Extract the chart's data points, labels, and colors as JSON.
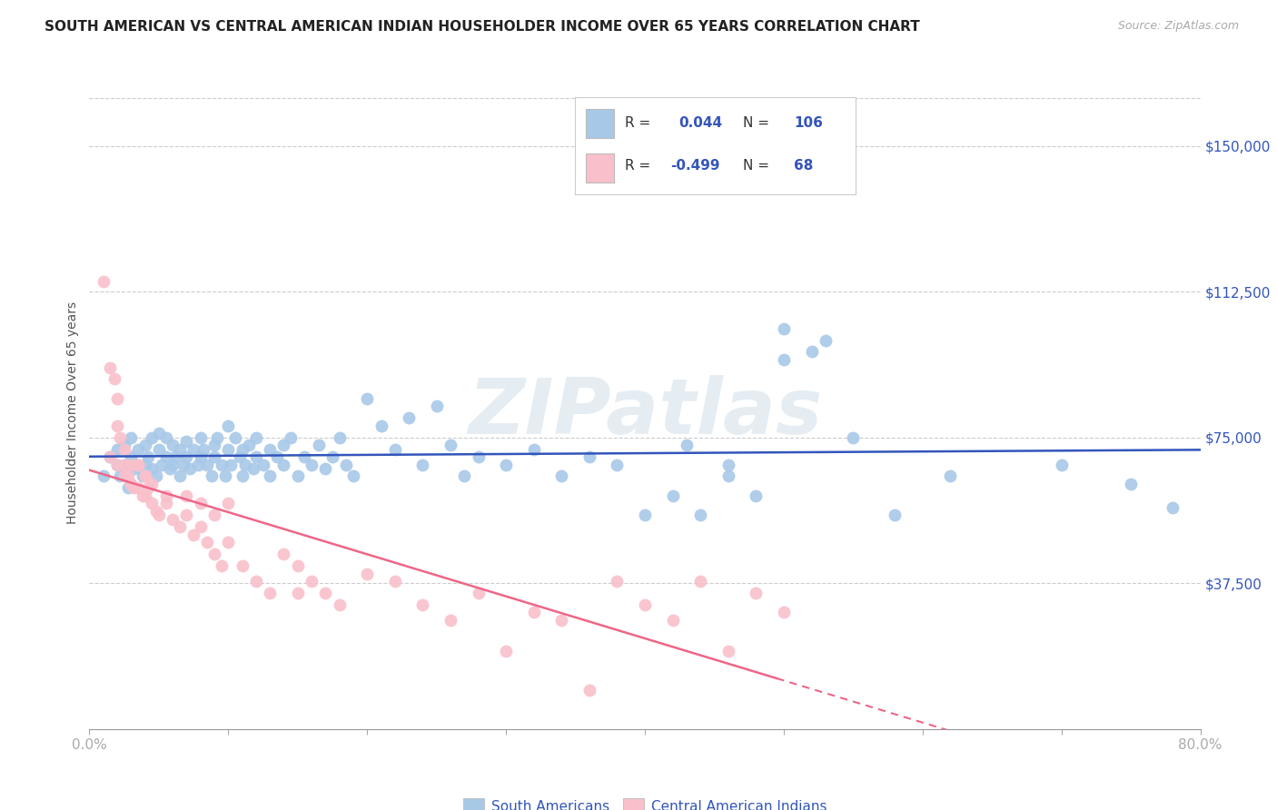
{
  "title": "SOUTH AMERICAN VS CENTRAL AMERICAN INDIAN HOUSEHOLDER INCOME OVER 65 YEARS CORRELATION CHART",
  "source": "Source: ZipAtlas.com",
  "ylabel": "Householder Income Over 65 years",
  "ytick_labels": [
    "$37,500",
    "$75,000",
    "$112,500",
    "$150,000"
  ],
  "ytick_values": [
    37500,
    75000,
    112500,
    150000
  ],
  "ymin": 0,
  "ymax": 162500,
  "xmin": 0.0,
  "xmax": 0.8,
  "r_blue": 0.044,
  "n_blue": 106,
  "r_pink": -0.499,
  "n_pink": 68,
  "watermark": "ZIPatlas",
  "blue_color": "#a8c8e8",
  "pink_color": "#f9c0cb",
  "line_blue": "#3355bb",
  "line_pink": "#ee6688",
  "legend_blue_label": "South Americans",
  "legend_pink_label": "Central American Indians",
  "title_color": "#222222",
  "axis_label_color": "#3355bb",
  "grid_color": "#cccccc",
  "background_color": "#ffffff",
  "blue_scatter_x": [
    0.01,
    0.015,
    0.02,
    0.02,
    0.022,
    0.025,
    0.025,
    0.028,
    0.03,
    0.03,
    0.032,
    0.035,
    0.035,
    0.038,
    0.04,
    0.04,
    0.042,
    0.045,
    0.045,
    0.048,
    0.05,
    0.05,
    0.052,
    0.055,
    0.055,
    0.058,
    0.06,
    0.06,
    0.062,
    0.065,
    0.065,
    0.068,
    0.07,
    0.07,
    0.072,
    0.075,
    0.078,
    0.08,
    0.08,
    0.082,
    0.085,
    0.088,
    0.09,
    0.09,
    0.092,
    0.095,
    0.098,
    0.1,
    0.1,
    0.102,
    0.105,
    0.108,
    0.11,
    0.11,
    0.112,
    0.115,
    0.118,
    0.12,
    0.12,
    0.125,
    0.13,
    0.13,
    0.135,
    0.14,
    0.14,
    0.145,
    0.15,
    0.155,
    0.16,
    0.165,
    0.17,
    0.175,
    0.18,
    0.185,
    0.19,
    0.2,
    0.21,
    0.22,
    0.23,
    0.24,
    0.25,
    0.26,
    0.27,
    0.28,
    0.3,
    0.32,
    0.34,
    0.36,
    0.38,
    0.4,
    0.42,
    0.44,
    0.46,
    0.48,
    0.5,
    0.52,
    0.55,
    0.58,
    0.62,
    0.7,
    0.75,
    0.78,
    0.43,
    0.46,
    0.5,
    0.53
  ],
  "blue_scatter_y": [
    65000,
    70000,
    68000,
    72000,
    65000,
    68000,
    73000,
    62000,
    70000,
    75000,
    67000,
    68000,
    72000,
    65000,
    73000,
    68000,
    70000,
    75000,
    67000,
    65000,
    72000,
    76000,
    68000,
    75000,
    70000,
    67000,
    73000,
    68000,
    70000,
    65000,
    72000,
    68000,
    70000,
    74000,
    67000,
    72000,
    68000,
    75000,
    70000,
    72000,
    68000,
    65000,
    73000,
    70000,
    75000,
    68000,
    65000,
    78000,
    72000,
    68000,
    75000,
    70000,
    65000,
    72000,
    68000,
    73000,
    67000,
    75000,
    70000,
    68000,
    65000,
    72000,
    70000,
    73000,
    68000,
    75000,
    65000,
    70000,
    68000,
    73000,
    67000,
    70000,
    75000,
    68000,
    65000,
    85000,
    78000,
    72000,
    80000,
    68000,
    83000,
    73000,
    65000,
    70000,
    68000,
    72000,
    65000,
    70000,
    68000,
    55000,
    60000,
    55000,
    65000,
    60000,
    103000,
    97000,
    75000,
    55000,
    65000,
    68000,
    63000,
    57000,
    73000,
    68000,
    95000,
    100000
  ],
  "pink_scatter_x": [
    0.01,
    0.015,
    0.018,
    0.02,
    0.02,
    0.022,
    0.025,
    0.025,
    0.028,
    0.03,
    0.03,
    0.032,
    0.035,
    0.035,
    0.038,
    0.04,
    0.04,
    0.042,
    0.045,
    0.048,
    0.05,
    0.055,
    0.06,
    0.065,
    0.07,
    0.075,
    0.08,
    0.085,
    0.09,
    0.095,
    0.1,
    0.11,
    0.12,
    0.13,
    0.14,
    0.15,
    0.16,
    0.17,
    0.18,
    0.2,
    0.22,
    0.24,
    0.26,
    0.28,
    0.3,
    0.32,
    0.34,
    0.36,
    0.38,
    0.4,
    0.42,
    0.44,
    0.46,
    0.48,
    0.5,
    0.015,
    0.02,
    0.025,
    0.03,
    0.035,
    0.04,
    0.045,
    0.055,
    0.07,
    0.08,
    0.09,
    0.1,
    0.15
  ],
  "pink_scatter_y": [
    115000,
    93000,
    90000,
    85000,
    78000,
    75000,
    72000,
    68000,
    65000,
    68000,
    63000,
    62000,
    68000,
    62000,
    60000,
    65000,
    60000,
    62000,
    58000,
    56000,
    55000,
    58000,
    54000,
    52000,
    55000,
    50000,
    52000,
    48000,
    45000,
    42000,
    48000,
    42000,
    38000,
    35000,
    45000,
    42000,
    38000,
    35000,
    32000,
    40000,
    38000,
    32000,
    28000,
    35000,
    20000,
    30000,
    28000,
    10000,
    38000,
    32000,
    28000,
    38000,
    20000,
    35000,
    30000,
    70000,
    68000,
    65000,
    63000,
    68000,
    65000,
    63000,
    60000,
    60000,
    58000,
    55000,
    58000,
    35000
  ]
}
